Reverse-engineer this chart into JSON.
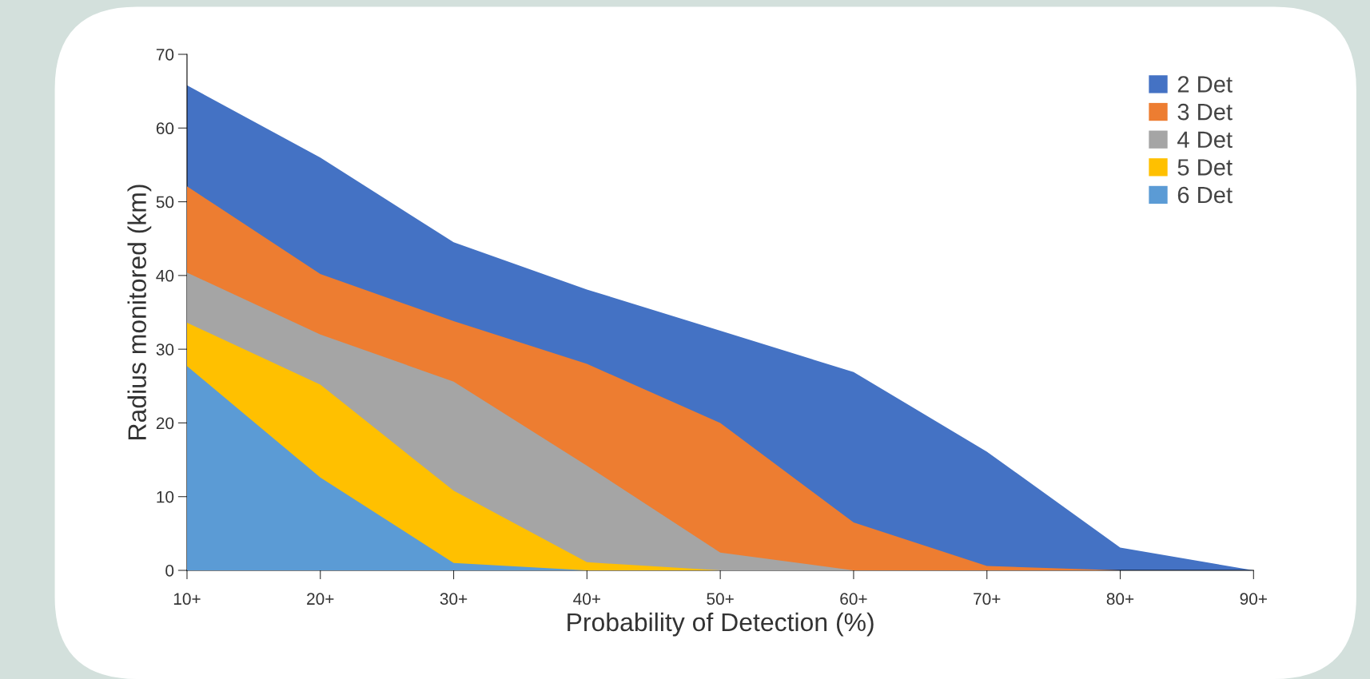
{
  "chart_data": {
    "type": "area",
    "xlabel": "Probability of Detection (%)",
    "ylabel": "Radius monitored (km)",
    "categories": [
      "10+",
      "20+",
      "30+",
      "40+",
      "50+",
      "60+",
      "70+",
      "80+",
      "90+"
    ],
    "ylim": [
      0,
      70
    ],
    "yticks": [
      0,
      10,
      20,
      30,
      40,
      50,
      60,
      70
    ],
    "grid": false,
    "legend": "top right",
    "series": [
      {
        "name": "2 Det",
        "color": "#4472c4",
        "values": [
          65.8,
          56,
          44.5,
          38.1,
          32.5,
          26.9,
          16.1,
          3.1,
          0
        ]
      },
      {
        "name": "3 Det",
        "color": "#ed7d31",
        "values": [
          52.1,
          40.2,
          33.8,
          28,
          20,
          6.5,
          0.6,
          0,
          0
        ]
      },
      {
        "name": "4 Det",
        "color": "#a5a5a5",
        "values": [
          40.4,
          32,
          25.6,
          14.2,
          2.4,
          0,
          0,
          0,
          0
        ]
      },
      {
        "name": "5 Det",
        "color": "#ffc000",
        "values": [
          33.6,
          25.2,
          10.8,
          1.1,
          0,
          0,
          0,
          0,
          0
        ]
      },
      {
        "name": "6 Det",
        "color": "#5b9bd5",
        "values": [
          27.7,
          12.6,
          1,
          0,
          0,
          0,
          0,
          0,
          0
        ]
      }
    ]
  }
}
